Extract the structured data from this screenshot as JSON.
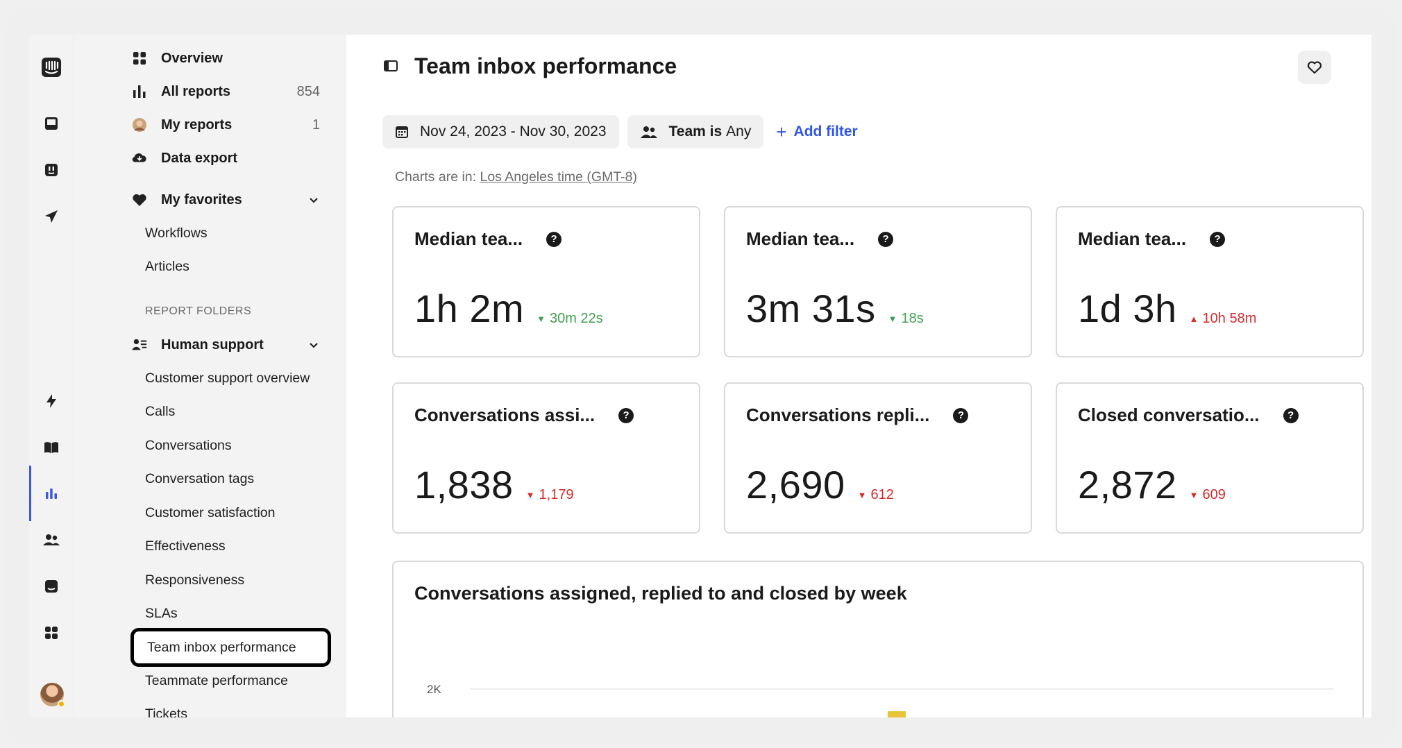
{
  "sidebar": {
    "nav": [
      {
        "label": "Overview",
        "count": "",
        "icon": "grid-icon"
      },
      {
        "label": "All reports",
        "count": "854",
        "icon": "bar-chart-icon"
      },
      {
        "label": "My reports",
        "count": "1",
        "icon": "avatar-icon"
      },
      {
        "label": "Data export",
        "count": "",
        "icon": "cloud-download-icon"
      }
    ],
    "favorites": {
      "label": "My favorites",
      "items": [
        "Workflows",
        "Articles"
      ]
    },
    "folders_heading": "REPORT FOLDERS",
    "human_support": {
      "label": "Human support",
      "items": [
        "Customer support overview",
        "Calls",
        "Conversations",
        "Conversation tags",
        "Customer satisfaction",
        "Effectiveness",
        "Responsiveness",
        "SLAs",
        "Team inbox performance",
        "Teammate performance",
        "Tickets"
      ],
      "selected": "Team inbox performance"
    }
  },
  "header": {
    "title": "Team inbox performance"
  },
  "filters": {
    "date_range": "Nov 24, 2023 - Nov 30, 2023",
    "team_label": "Team is",
    "team_value": "Any",
    "add_filter": "Add filter"
  },
  "timezone": {
    "prefix": "Charts are in:",
    "link": "Los Angeles time (GMT-8)"
  },
  "cards": [
    {
      "title": "Median tea...",
      "value": "1h 2m",
      "delta": "30m 22s",
      "trend": "down",
      "status": "good"
    },
    {
      "title": "Median tea...",
      "value": "3m 31s",
      "delta": "18s",
      "trend": "down",
      "status": "good"
    },
    {
      "title": "Median tea...",
      "value": "1d 3h",
      "delta": "10h 58m",
      "trend": "up",
      "status": "bad"
    },
    {
      "title": "Conversations assi...",
      "value": "1,838",
      "delta": "1,179",
      "trend": "down",
      "status": "bad"
    },
    {
      "title": "Conversations repli...",
      "value": "2,690",
      "delta": "612",
      "trend": "down",
      "status": "bad"
    },
    {
      "title": "Closed conversatio...",
      "value": "2,872",
      "delta": "609",
      "trend": "down",
      "status": "bad"
    }
  ],
  "colors": {
    "good": "#3f9f4f",
    "bad": "#d42b2b",
    "accent": "#2f54eb",
    "bar": "#e9c33b"
  },
  "chart_data": {
    "type": "bar",
    "title": "Conversations assigned, replied to and closed by week",
    "yticks": [
      "2K"
    ],
    "series": [
      {
        "values": [
          1838
        ]
      }
    ]
  }
}
